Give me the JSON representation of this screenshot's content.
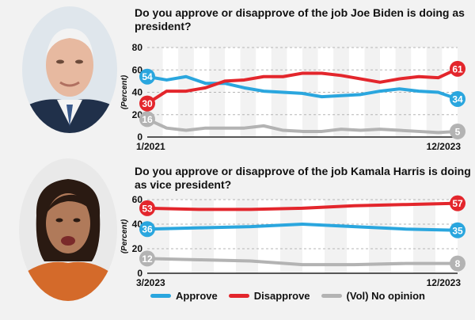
{
  "colors": {
    "approve": "#2aa6de",
    "disapprove": "#e3262c",
    "no_opinion": "#b3b3b3"
  },
  "legend": {
    "approve": "Approve",
    "disapprove": "Disapprove",
    "no_opinion": "(Vol) No opinion"
  },
  "chart_data": [
    {
      "type": "line",
      "title": "Do you approve or disapprove of the job Joe Biden is doing as president?",
      "ylabel": "(Percent)",
      "ylim": [
        0,
        80
      ],
      "yticks": [
        0,
        20,
        40,
        60,
        80
      ],
      "x_start_label": "1/2021",
      "x_end_label": "12/2023",
      "grid": true,
      "series": [
        {
          "name": "Approve",
          "key": "approve",
          "values": [
            54,
            51,
            54,
            48,
            48,
            44,
            41,
            40,
            39,
            36,
            37,
            38,
            41,
            43,
            41,
            40,
            34
          ],
          "start_label": "54",
          "end_label": "34"
        },
        {
          "name": "Disapprove",
          "key": "disapprove",
          "values": [
            30,
            41,
            41,
            44,
            50,
            51,
            54,
            54,
            57,
            57,
            55,
            52,
            49,
            52,
            54,
            53,
            61
          ],
          "start_label": "30",
          "end_label": "61"
        },
        {
          "name": "(Vol) No opinion",
          "key": "no_opinion",
          "values": [
            16,
            8,
            6,
            8,
            8,
            8,
            10,
            6,
            5,
            5,
            7,
            6,
            7,
            6,
            5,
            4,
            5
          ],
          "start_label": "16",
          "end_label": "5"
        }
      ]
    },
    {
      "type": "line",
      "title": "Do you approve or disapprove of the job Kamala Harris is doing as vice president?",
      "ylabel": "(Percent)",
      "ylim": [
        0,
        60
      ],
      "yticks": [
        0,
        20,
        40,
        60
      ],
      "x_start_label": "3/2023",
      "x_end_label": "12/2023",
      "grid": true,
      "series": [
        {
          "name": "Approve",
          "key": "approve",
          "values": [
            36,
            37,
            38,
            40,
            38,
            36,
            35
          ],
          "start_label": "36",
          "end_label": "35"
        },
        {
          "name": "Disapprove",
          "key": "disapprove",
          "values": [
            53,
            52,
            52,
            53,
            55,
            56,
            57
          ],
          "start_label": "53",
          "end_label": "57"
        },
        {
          "name": "(Vol) No opinion",
          "key": "no_opinion",
          "values": [
            12,
            11,
            10,
            7,
            7,
            8,
            8
          ],
          "start_label": "12",
          "end_label": "8"
        }
      ]
    }
  ]
}
